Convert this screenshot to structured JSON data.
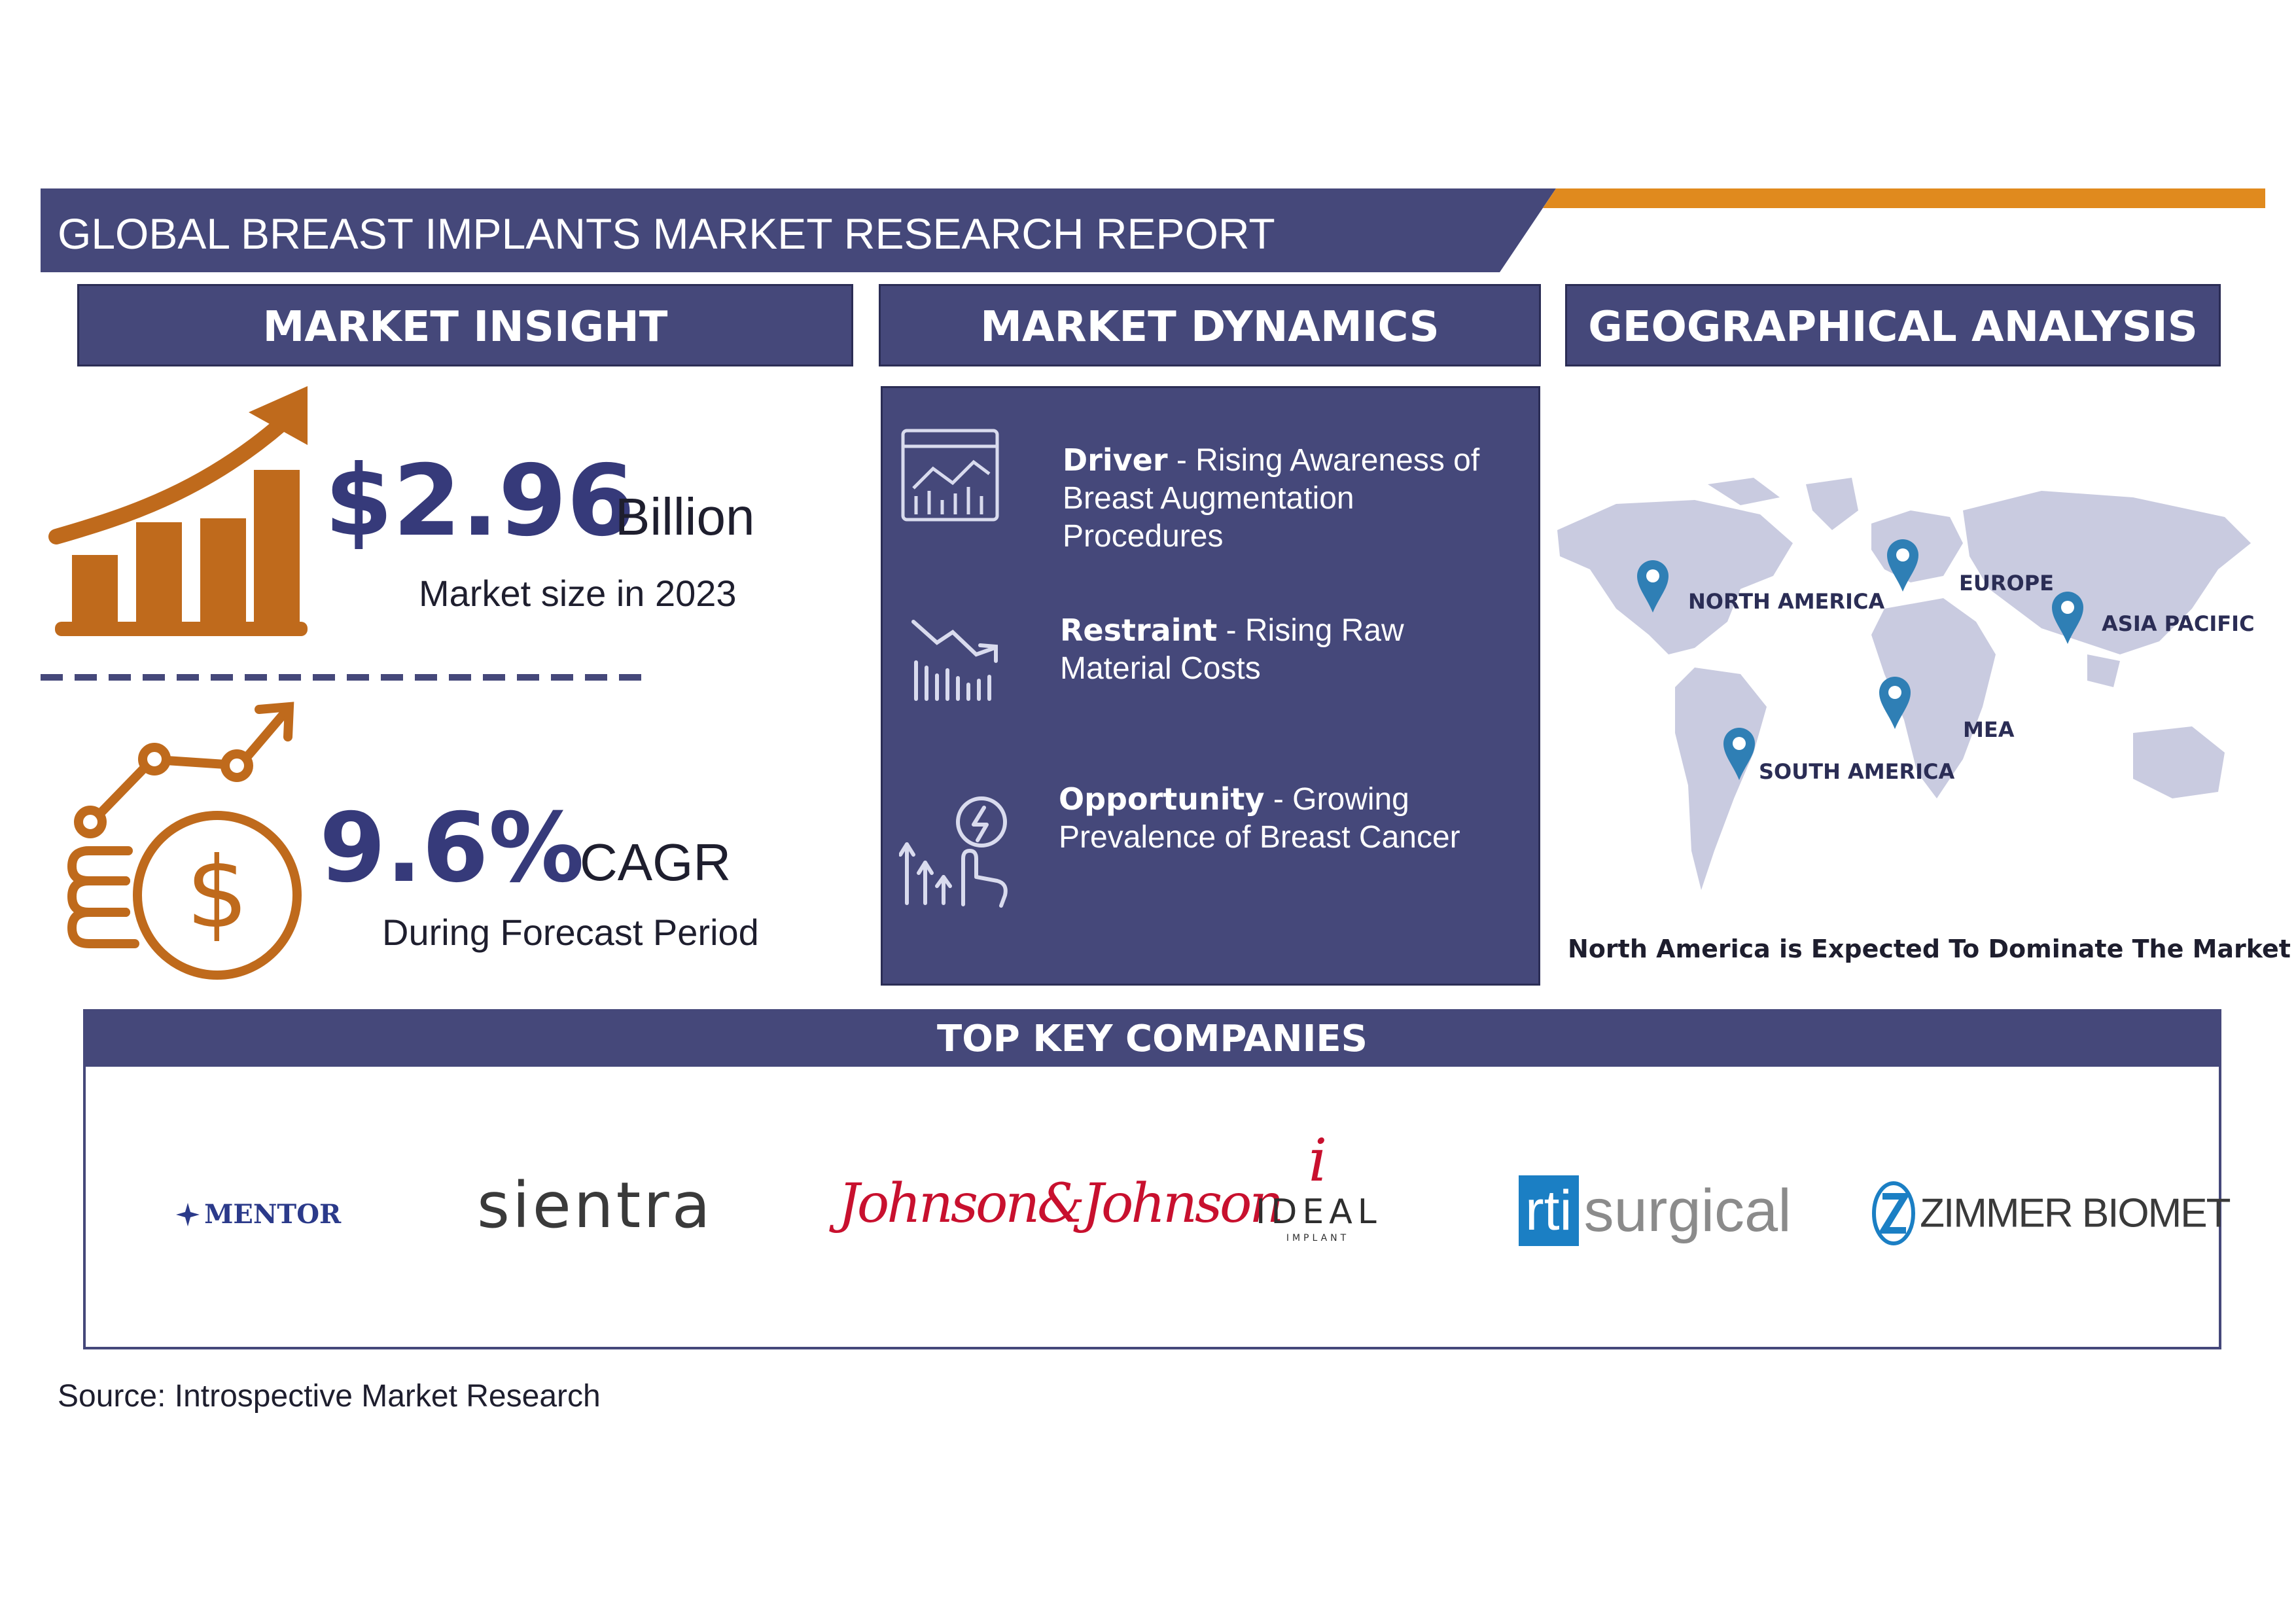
{
  "title": "GLOBAL BREAST IMPLANTS MARKET RESEARCH REPORT",
  "colors": {
    "navy": "#45487a",
    "navy_dark": "#2b2d55",
    "accent_orange": "#e08a1e",
    "icon_brown": "#bf6a1c",
    "number_blue": "#363a7a",
    "map_gray": "#c9cbe0",
    "pin_blue": "#2f7fb5"
  },
  "sections": {
    "market_insight": "MARKET INSIGHT",
    "market_dynamics": "MARKET DYNAMICS",
    "geographical_analysis": "GEOGRAPHICAL ANALYSIS"
  },
  "insight": {
    "market_size_value": "$2.96",
    "market_size_unit": "Billion",
    "market_size_caption": "Market size in 2023",
    "cagr_value": "9.6%",
    "cagr_unit": "CAGR",
    "cagr_caption": "During Forecast Period"
  },
  "dynamics": [
    {
      "label": "Driver",
      "text": " - Rising Awareness of Breast Augmentation Procedures",
      "icon": "analytics-chart-icon"
    },
    {
      "label": "Restraint",
      "text": " - Rising Raw Material Costs",
      "icon": "declining-bars-icon"
    },
    {
      "label": "Opportunity",
      "text": " - Growing Prevalence of Breast Cancer",
      "icon": "growth-hand-icon"
    }
  ],
  "geography": {
    "regions": [
      "NORTH AMERICA",
      "EUROPE",
      "ASIA PACIFIC",
      "MEA",
      "SOUTH AMERICA"
    ],
    "caption": "North America is Expected To Dominate The Market"
  },
  "companies": {
    "heading": "TOP KEY COMPANIES",
    "logos": {
      "mentor": "MENTOR",
      "sientra": "sientra",
      "jnj": "Johnson&Johnson",
      "ideal_mark": "i",
      "ideal_name": "IDEAL",
      "ideal_sub": "IMPLANT",
      "rti_box": "rti",
      "rti_word": "surgical",
      "zimmer": "ZIMMER BIOMET"
    }
  },
  "source": "Source: Introspective Market Research"
}
